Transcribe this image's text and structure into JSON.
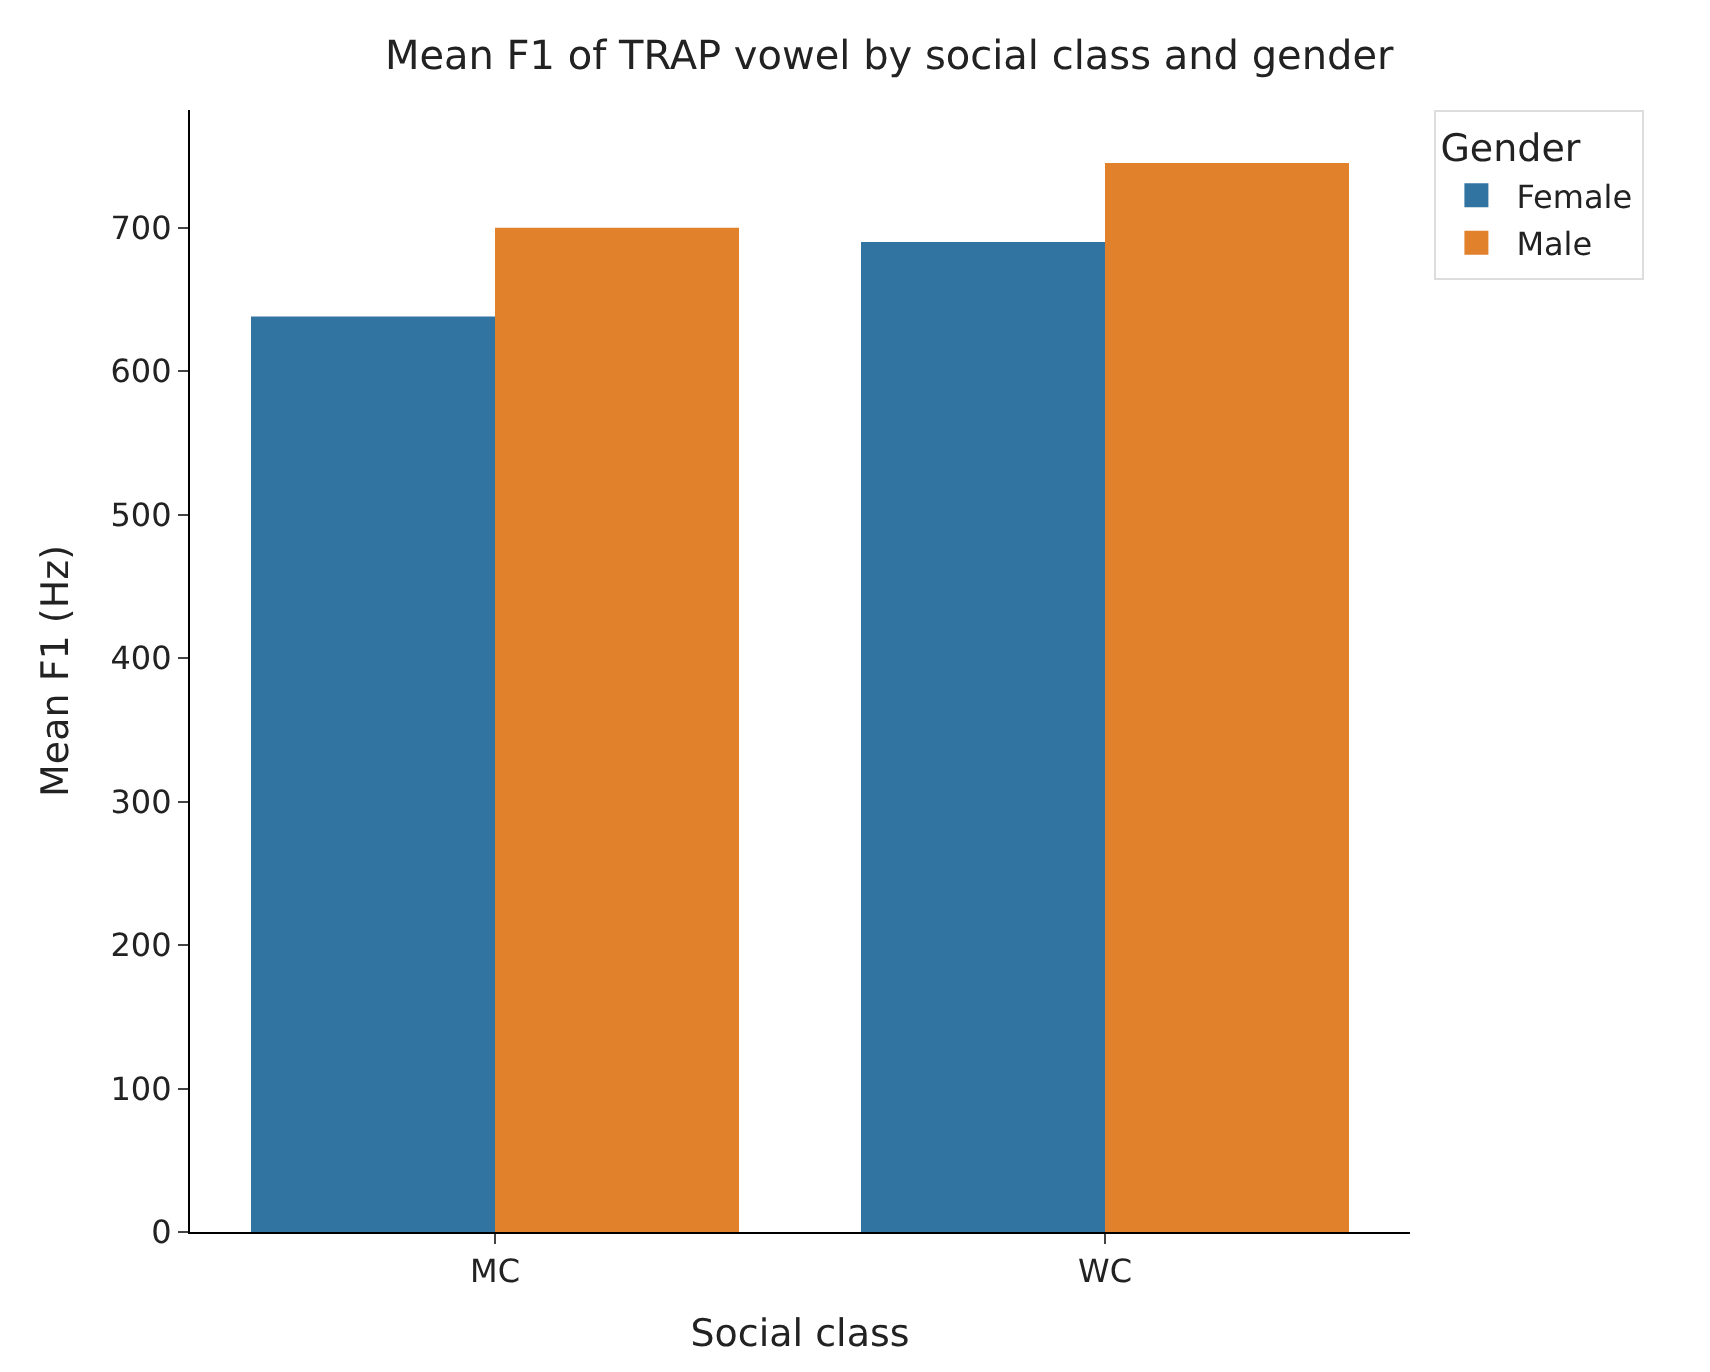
{
  "chart_data": {
    "type": "bar",
    "title": "Mean F1 of TRAP vowel by social class and gender",
    "xlabel": "Social class",
    "ylabel": "Mean F1 (Hz)",
    "legend_title": "Gender",
    "categories": [
      "MC",
      "WC"
    ],
    "series": [
      {
        "name": "Female",
        "color": "#3274a1",
        "values": [
          638,
          690
        ]
      },
      {
        "name": "Male",
        "color": "#e1812c",
        "values": [
          700,
          745
        ]
      }
    ],
    "ylim": [
      0,
      782
    ],
    "yticks": [
      0,
      100,
      200,
      300,
      400,
      500,
      600,
      700
    ],
    "legend": "top right"
  }
}
